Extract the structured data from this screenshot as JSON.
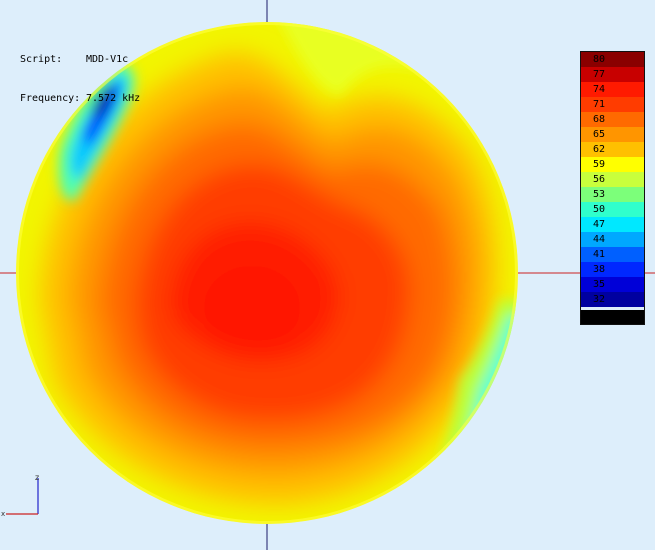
{
  "info": {
    "script_label": "Script:",
    "script_value": "MDD-V1c",
    "frequency_label": "Frequency:",
    "frequency_value": "7.572 kHz"
  },
  "legend": {
    "levels": [
      {
        "label": "80",
        "color": "#8a0000"
      },
      {
        "label": "77",
        "color": "#c80000"
      },
      {
        "label": "74",
        "color": "#ff1a00"
      },
      {
        "label": "71",
        "color": "#ff3c00"
      },
      {
        "label": "68",
        "color": "#ff6a00"
      },
      {
        "label": "65",
        "color": "#ff9500"
      },
      {
        "label": "62",
        "color": "#ffc000"
      },
      {
        "label": "59",
        "color": "#ffff00"
      },
      {
        "label": "56",
        "color": "#c8ff3c"
      },
      {
        "label": "53",
        "color": "#7cff7a"
      },
      {
        "label": "50",
        "color": "#30ffcc"
      },
      {
        "label": "47",
        "color": "#00e8ff"
      },
      {
        "label": "44",
        "color": "#00a8ff"
      },
      {
        "label": "41",
        "color": "#0060ff"
      },
      {
        "label": "38",
        "color": "#0028ff"
      },
      {
        "label": "35",
        "color": "#0000d8"
      },
      {
        "label": "32",
        "color": "#0000a0"
      }
    ]
  },
  "axes_indicator": {
    "vertical_label": "z",
    "horizontal_label": "x"
  }
}
